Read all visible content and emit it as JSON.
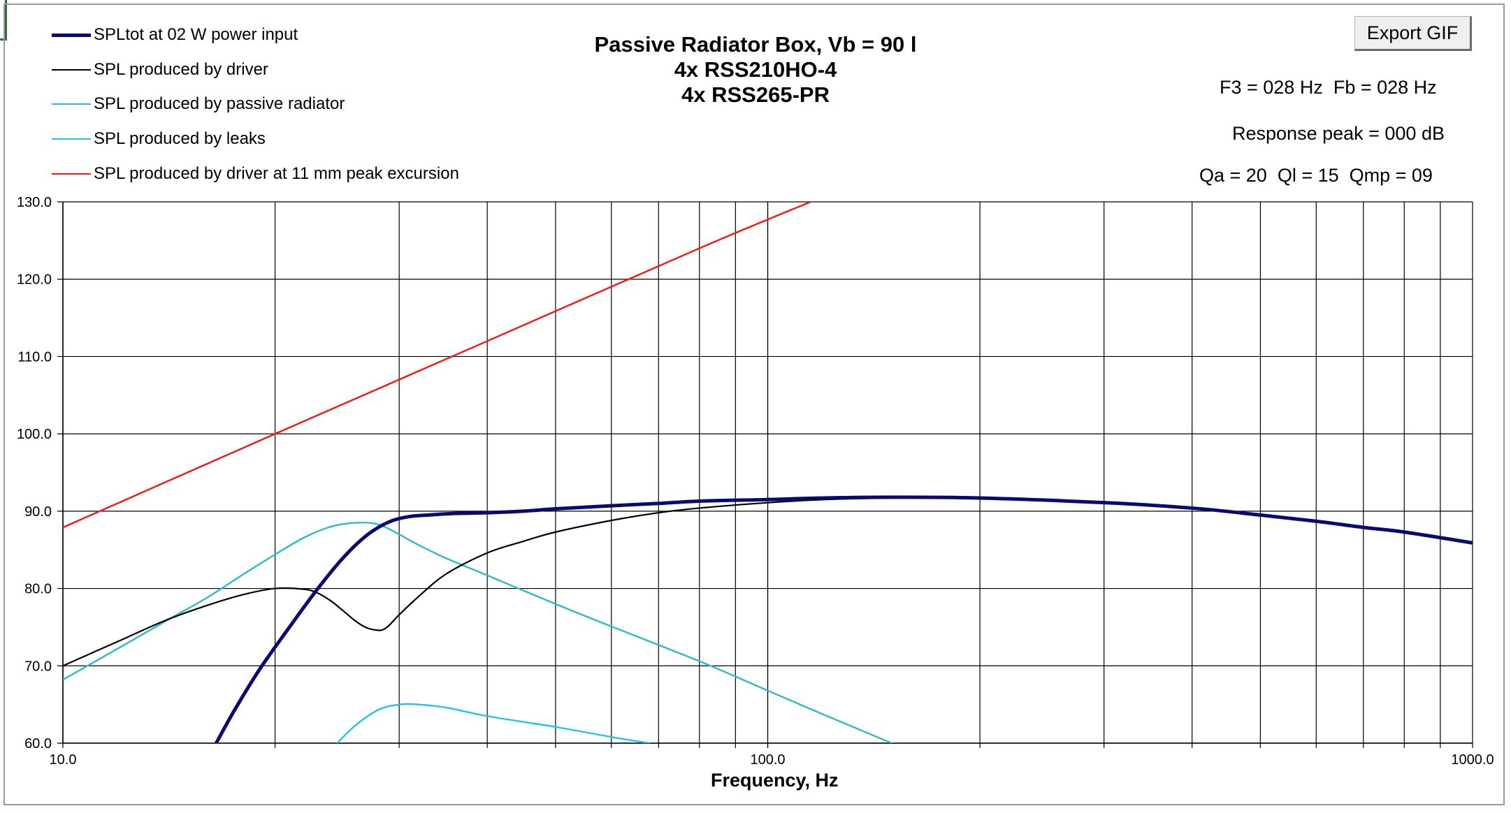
{
  "export_button_label": "Export GIF",
  "title_lines": [
    "Passive Radiator Box, Vb = 90 l",
    "4x RSS210HO-4",
    "4x RSS265-PR"
  ],
  "info": {
    "f3_fb": "F3 = 028 Hz  Fb = 028 Hz",
    "response_peak": "Response peak = 000 dB",
    "q_values": "Qa = 20  Ql = 15  Qmp = 09"
  },
  "colors": {
    "spl_total": "#0a0a6e",
    "driver": "#000000",
    "passive_radiator": "#2bbcc4",
    "leaks": "#22c3e6",
    "excursion": "#ff1414",
    "grid": "#000000"
  },
  "chart_data": {
    "type": "line",
    "title": "Passive Radiator Box, Vb = 90 l\n4x RSS210HO-4\n4x RSS265-PR",
    "xlabel": "Frequency, Hz",
    "ylabel": "",
    "x_scale": "log",
    "xlim": [
      10,
      1000
    ],
    "ylim": [
      60,
      130
    ],
    "grid": true,
    "legend_position": "top-left",
    "x_tick_labels": [
      "10.0",
      "100.0",
      "1000.0"
    ],
    "y_tick_labels": [
      "60.0",
      "70.0",
      "80.0",
      "90.0",
      "100.0",
      "110.0",
      "120.0",
      "130.0"
    ],
    "series": [
      {
        "name": "SPLtot at 02 W power input",
        "x": [
          16.5,
          17.5,
          19,
          21,
          23,
          25,
          27,
          29,
          31,
          33,
          36,
          40,
          45,
          50,
          60,
          70,
          80,
          100,
          120,
          150,
          200,
          300,
          400,
          500,
          600,
          700,
          800,
          1000
        ],
        "y": [
          60.0,
          64.2,
          69.5,
          75.1,
          80.0,
          84.0,
          86.9,
          88.6,
          89.3,
          89.5,
          89.7,
          89.8,
          90.0,
          90.3,
          90.7,
          91.0,
          91.3,
          91.5,
          91.7,
          91.8,
          91.7,
          91.1,
          90.4,
          89.5,
          88.7,
          87.9,
          87.3,
          85.9
        ]
      },
      {
        "name": "SPL produced by driver",
        "x": [
          10,
          12,
          14,
          16,
          18,
          20,
          22,
          23,
          24,
          25,
          26,
          27,
          28,
          28.5,
          29,
          30,
          32,
          35,
          40,
          45,
          50,
          60,
          70,
          80,
          100,
          120,
          150,
          200,
          300,
          400,
          500,
          600,
          700,
          800,
          1000
        ],
        "y": [
          70.0,
          73.2,
          75.9,
          77.8,
          79.2,
          80.0,
          79.9,
          79.4,
          78.4,
          77.1,
          75.8,
          74.9,
          74.6,
          74.7,
          75.2,
          76.6,
          79.0,
          81.9,
          84.6,
          86.1,
          87.3,
          88.8,
          89.8,
          90.4,
          91.1,
          91.5,
          91.7,
          91.7,
          91.1,
          90.4,
          89.5,
          88.7,
          87.9,
          87.3,
          85.9
        ]
      },
      {
        "name": "SPL produced by passive radiator",
        "x": [
          10,
          12,
          14,
          16,
          18,
          20,
          22,
          24,
          26,
          28,
          30,
          32,
          35,
          40,
          50,
          60,
          80,
          100,
          120,
          150
        ],
        "y": [
          68.2,
          72.3,
          75.8,
          78.8,
          81.8,
          84.4,
          86.6,
          88.0,
          88.5,
          88.3,
          87.0,
          85.6,
          83.9,
          81.7,
          78.0,
          75.1,
          70.6,
          66.8,
          63.7,
          60.0
        ]
      },
      {
        "name": "SPL produced by leaks",
        "x": [
          24.5,
          26,
          28,
          30,
          32,
          35,
          40,
          50,
          60,
          68
        ],
        "y": [
          60.0,
          62.3,
          64.3,
          65.0,
          65.0,
          64.6,
          63.5,
          62.1,
          60.8,
          60.0
        ]
      },
      {
        "name": "SPL produced by driver at 11 mm peak excursion",
        "x": [
          10,
          20,
          40,
          80,
          115
        ],
        "y": [
          87.9,
          100.0,
          112.0,
          124.0,
          130.0
        ]
      }
    ]
  }
}
